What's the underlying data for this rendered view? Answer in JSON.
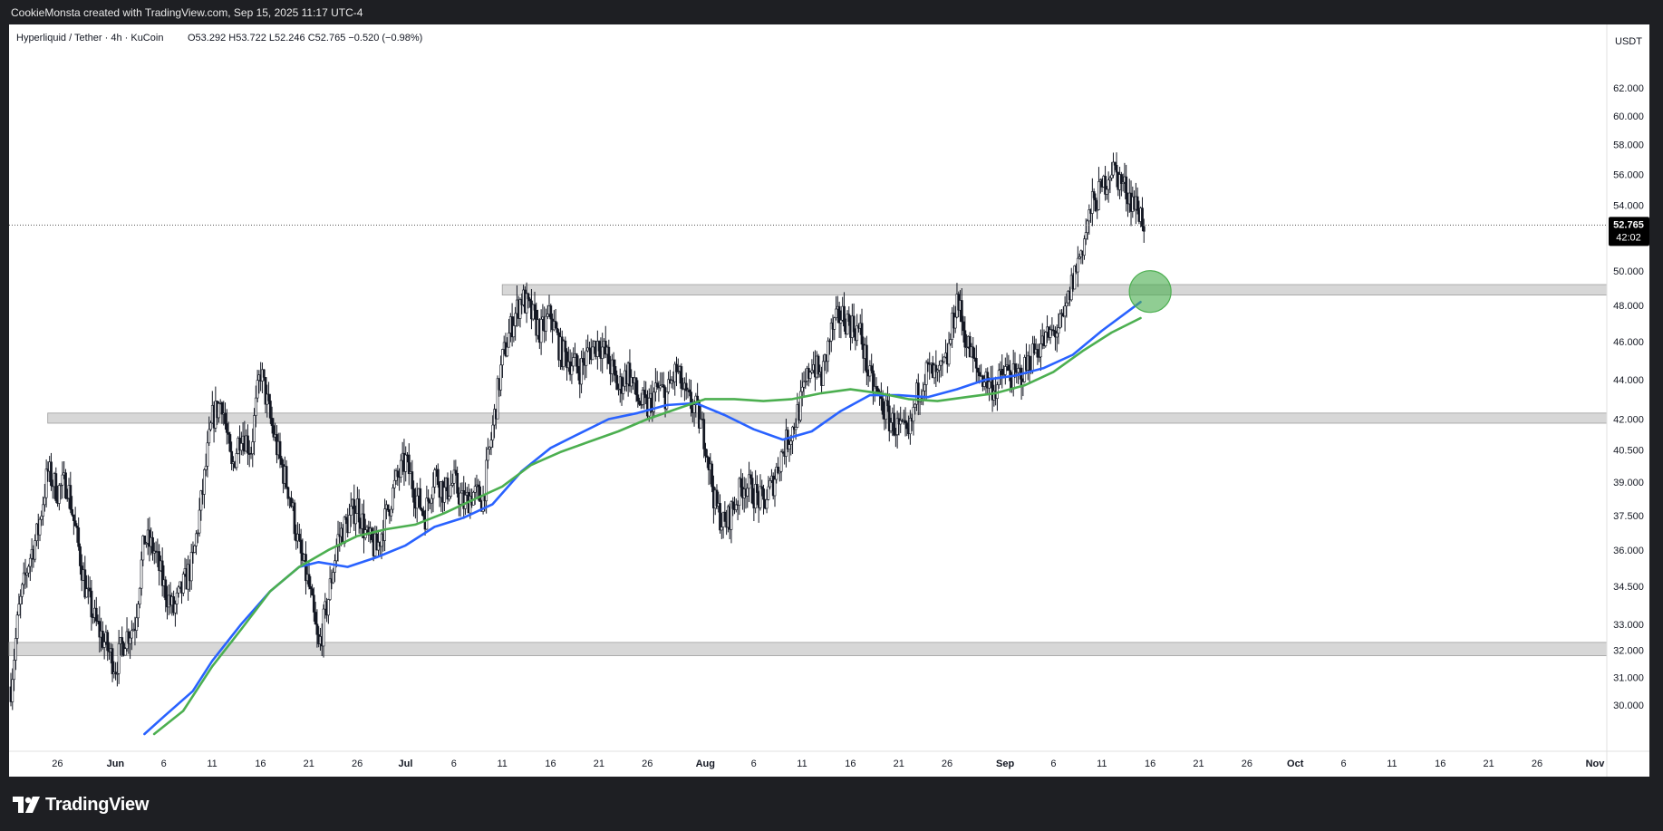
{
  "header": {
    "attribution": "CookieMonsta created with TradingView.com, Sep 15, 2025 11:17 UTC-4"
  },
  "footer": {
    "brand": "TradingView",
    "brand_icon": "tradingview-logo-icon"
  },
  "chart_data": {
    "type": "candlestick",
    "title": "Hyperliquid / Tether · 4h · KuCoin",
    "ohlc_label": "O53.292 H53.722 L52.246 C52.765 −0.520 (−0.98%)",
    "currency": "USDT",
    "y_scale": "log",
    "ylim": [
      29.0,
      64.5
    ],
    "y_ticks": [
      30.0,
      31.0,
      32.0,
      33.0,
      34.5,
      36.0,
      37.5,
      39.0,
      40.5,
      42.0,
      44.0,
      46.0,
      48.0,
      50.0,
      54.0,
      56.0,
      58.0,
      60.0,
      62.0
    ],
    "y_tick_labels": [
      "30.000",
      "31.000",
      "32.000",
      "33.000",
      "34.500",
      "36.000",
      "37.500",
      "39.000",
      "40.500",
      "42.000",
      "44.000",
      "46.000",
      "48.000",
      "50.000",
      "54.000",
      "56.000",
      "58.000",
      "60.000",
      "62.000"
    ],
    "x_range": [
      "2025-05-21",
      "2025-11-01"
    ],
    "x_ticks": [
      {
        "date": "2025-05-26",
        "label": "26"
      },
      {
        "date": "2025-06-01",
        "label": "Jun"
      },
      {
        "date": "2025-06-06",
        "label": "6"
      },
      {
        "date": "2025-06-11",
        "label": "11"
      },
      {
        "date": "2025-06-16",
        "label": "16"
      },
      {
        "date": "2025-06-21",
        "label": "21"
      },
      {
        "date": "2025-06-26",
        "label": "26"
      },
      {
        "date": "2025-07-01",
        "label": "Jul"
      },
      {
        "date": "2025-07-06",
        "label": "6"
      },
      {
        "date": "2025-07-11",
        "label": "11"
      },
      {
        "date": "2025-07-16",
        "label": "16"
      },
      {
        "date": "2025-07-21",
        "label": "21"
      },
      {
        "date": "2025-07-26",
        "label": "26"
      },
      {
        "date": "2025-08-01",
        "label": "Aug"
      },
      {
        "date": "2025-08-06",
        "label": "6"
      },
      {
        "date": "2025-08-11",
        "label": "11"
      },
      {
        "date": "2025-08-16",
        "label": "16"
      },
      {
        "date": "2025-08-21",
        "label": "21"
      },
      {
        "date": "2025-08-26",
        "label": "26"
      },
      {
        "date": "2025-09-01",
        "label": "Sep"
      },
      {
        "date": "2025-09-06",
        "label": "6"
      },
      {
        "date": "2025-09-11",
        "label": "11"
      },
      {
        "date": "2025-09-16",
        "label": "16"
      },
      {
        "date": "2025-09-21",
        "label": "21"
      },
      {
        "date": "2025-09-26",
        "label": "26"
      },
      {
        "date": "2025-10-01",
        "label": "Oct"
      },
      {
        "date": "2025-10-06",
        "label": "6"
      },
      {
        "date": "2025-10-11",
        "label": "11"
      },
      {
        "date": "2025-10-16",
        "label": "16"
      },
      {
        "date": "2025-10-21",
        "label": "21"
      },
      {
        "date": "2025-10-26",
        "label": "26"
      },
      {
        "date": "2025-11-01",
        "label": "Nov"
      }
    ],
    "last_price": {
      "value": 52.765,
      "label": "52.765",
      "countdown": "42:02",
      "color": "#000000"
    },
    "price_path": [
      [
        "2025-05-21",
        30.0
      ],
      [
        "2025-05-22",
        33.5
      ],
      [
        "2025-05-23",
        35.5
      ],
      [
        "2025-05-24",
        36.8
      ],
      [
        "2025-05-25",
        39.5
      ],
      [
        "2025-05-26",
        38.6
      ],
      [
        "2025-05-27",
        39.0
      ],
      [
        "2025-05-28",
        36.5
      ],
      [
        "2025-05-29",
        34.2
      ],
      [
        "2025-05-30",
        33.0
      ],
      [
        "2025-05-31",
        32.2
      ],
      [
        "2025-06-01",
        31.4
      ],
      [
        "2025-06-02",
        32.5
      ],
      [
        "2025-06-03",
        33.0
      ],
      [
        "2025-06-04",
        36.5
      ],
      [
        "2025-06-05",
        36.0
      ],
      [
        "2025-06-06",
        34.5
      ],
      [
        "2025-06-07",
        33.5
      ],
      [
        "2025-06-08",
        34.5
      ],
      [
        "2025-06-09",
        35.5
      ],
      [
        "2025-06-10",
        38.5
      ],
      [
        "2025-06-11",
        42.0
      ],
      [
        "2025-06-12",
        43.0
      ],
      [
        "2025-06-13",
        39.5
      ],
      [
        "2025-06-14",
        41.5
      ],
      [
        "2025-06-15",
        40.5
      ],
      [
        "2025-06-16",
        44.5
      ],
      [
        "2025-06-17",
        42.0
      ],
      [
        "2025-06-18",
        40.0
      ],
      [
        "2025-06-19",
        38.5
      ],
      [
        "2025-06-20",
        36.0
      ],
      [
        "2025-06-21",
        34.5
      ],
      [
        "2025-06-22",
        32.0
      ],
      [
        "2025-06-23",
        34.0
      ],
      [
        "2025-06-24",
        36.5
      ],
      [
        "2025-06-25",
        37.2
      ],
      [
        "2025-06-26",
        38.0
      ],
      [
        "2025-06-27",
        36.5
      ],
      [
        "2025-06-28",
        36.0
      ],
      [
        "2025-06-29",
        37.5
      ],
      [
        "2025-06-30",
        39.0
      ],
      [
        "2025-07-01",
        40.0
      ],
      [
        "2025-07-02",
        38.5
      ],
      [
        "2025-07-03",
        37.5
      ],
      [
        "2025-07-04",
        39.5
      ],
      [
        "2025-07-05",
        38.5
      ],
      [
        "2025-07-06",
        39.0
      ],
      [
        "2025-07-07",
        38.0
      ],
      [
        "2025-07-08",
        38.5
      ],
      [
        "2025-07-09",
        38.2
      ],
      [
        "2025-07-10",
        41.5
      ],
      [
        "2025-07-11",
        45.0
      ],
      [
        "2025-07-12",
        47.0
      ],
      [
        "2025-07-13",
        48.5
      ],
      [
        "2025-07-14",
        47.5
      ],
      [
        "2025-07-15",
        46.5
      ],
      [
        "2025-07-16",
        47.5
      ],
      [
        "2025-07-17",
        45.5
      ],
      [
        "2025-07-18",
        45.0
      ],
      [
        "2025-07-19",
        44.5
      ],
      [
        "2025-07-20",
        45.5
      ],
      [
        "2025-07-21",
        46.0
      ],
      [
        "2025-07-22",
        45.0
      ],
      [
        "2025-07-23",
        43.5
      ],
      [
        "2025-07-24",
        44.5
      ],
      [
        "2025-07-25",
        43.0
      ],
      [
        "2025-07-26",
        42.5
      ],
      [
        "2025-07-27",
        43.5
      ],
      [
        "2025-07-28",
        43.2
      ],
      [
        "2025-07-29",
        44.5
      ],
      [
        "2025-07-30",
        43.0
      ],
      [
        "2025-07-31",
        42.5
      ],
      [
        "2025-08-01",
        41.0
      ],
      [
        "2025-08-02",
        38.0
      ],
      [
        "2025-08-03",
        37.0
      ],
      [
        "2025-08-04",
        38.0
      ],
      [
        "2025-08-05",
        39.0
      ],
      [
        "2025-08-06",
        38.5
      ],
      [
        "2025-08-07",
        38.0
      ],
      [
        "2025-08-08",
        39.0
      ],
      [
        "2025-08-09",
        40.5
      ],
      [
        "2025-08-10",
        41.5
      ],
      [
        "2025-08-11",
        43.0
      ],
      [
        "2025-08-12",
        45.0
      ],
      [
        "2025-08-13",
        44.0
      ],
      [
        "2025-08-14",
        46.5
      ],
      [
        "2025-08-15",
        47.5
      ],
      [
        "2025-08-16",
        47.0
      ],
      [
        "2025-08-17",
        46.5
      ],
      [
        "2025-08-18",
        44.0
      ],
      [
        "2025-08-19",
        43.0
      ],
      [
        "2025-08-20",
        42.0
      ],
      [
        "2025-08-21",
        41.5
      ],
      [
        "2025-08-22",
        41.0
      ],
      [
        "2025-08-23",
        43.5
      ],
      [
        "2025-08-24",
        44.5
      ],
      [
        "2025-08-25",
        44.0
      ],
      [
        "2025-08-26",
        45.0
      ],
      [
        "2025-08-27",
        48.5
      ],
      [
        "2025-08-28",
        46.0
      ],
      [
        "2025-08-29",
        44.5
      ],
      [
        "2025-08-30",
        44.0
      ],
      [
        "2025-08-31",
        43.5
      ],
      [
        "2025-09-01",
        44.5
      ],
      [
        "2025-09-02",
        44.0
      ],
      [
        "2025-09-03",
        44.5
      ],
      [
        "2025-09-04",
        45.5
      ],
      [
        "2025-09-05",
        46.0
      ],
      [
        "2025-09-06",
        46.5
      ],
      [
        "2025-09-07",
        47.0
      ],
      [
        "2025-09-08",
        49.5
      ],
      [
        "2025-09-09",
        51.5
      ],
      [
        "2025-09-10",
        54.0
      ],
      [
        "2025-09-11",
        55.0
      ],
      [
        "2025-09-12",
        56.5
      ],
      [
        "2025-09-13",
        55.5
      ],
      [
        "2025-09-14",
        54.5
      ],
      [
        "2025-09-15",
        53.5
      ],
      [
        "2025-09-15T12:00",
        52.765
      ]
    ],
    "zones": [
      {
        "lo": 48.6,
        "hi": 49.2,
        "from": "2025-07-11",
        "color": "#d3d3d3"
      },
      {
        "lo": 41.8,
        "hi": 42.3,
        "from": "2025-05-25",
        "color": "#d3d3d3"
      },
      {
        "lo": 31.8,
        "hi": 32.3,
        "from": "2025-05-21",
        "color": "#d3d3d3"
      }
    ],
    "marker": {
      "date": "2025-09-16",
      "value": 48.8,
      "color": "#4caf50"
    },
    "series": [
      {
        "color": "#2962ff",
        "points": [
          [
            "2025-06-04",
            29.0
          ],
          [
            "2025-06-06",
            29.6
          ],
          [
            "2025-06-09",
            30.5
          ],
          [
            "2025-06-11",
            31.6
          ],
          [
            "2025-06-14",
            33.0
          ],
          [
            "2025-06-17",
            34.3
          ],
          [
            "2025-06-20",
            35.3
          ],
          [
            "2025-06-22",
            35.5
          ],
          [
            "2025-06-25",
            35.3
          ],
          [
            "2025-06-28",
            35.7
          ],
          [
            "2025-07-01",
            36.2
          ],
          [
            "2025-07-04",
            37.0
          ],
          [
            "2025-07-07",
            37.4
          ],
          [
            "2025-07-10",
            38.0
          ],
          [
            "2025-07-13",
            39.5
          ],
          [
            "2025-07-16",
            40.6
          ],
          [
            "2025-07-19",
            41.3
          ],
          [
            "2025-07-22",
            42.0
          ],
          [
            "2025-07-25",
            42.3
          ],
          [
            "2025-07-28",
            42.7
          ],
          [
            "2025-07-31",
            42.8
          ],
          [
            "2025-08-03",
            42.2
          ],
          [
            "2025-08-06",
            41.5
          ],
          [
            "2025-08-09",
            41.0
          ],
          [
            "2025-08-12",
            41.4
          ],
          [
            "2025-08-15",
            42.4
          ],
          [
            "2025-08-18",
            43.2
          ],
          [
            "2025-08-21",
            43.2
          ],
          [
            "2025-08-24",
            43.1
          ],
          [
            "2025-08-27",
            43.5
          ],
          [
            "2025-08-30",
            44.0
          ],
          [
            "2025-09-02",
            44.2
          ],
          [
            "2025-09-05",
            44.6
          ],
          [
            "2025-09-08",
            45.3
          ],
          [
            "2025-09-11",
            46.6
          ],
          [
            "2025-09-15",
            48.2
          ]
        ]
      },
      {
        "color": "#4caf50",
        "points": [
          [
            "2025-06-05",
            29.0
          ],
          [
            "2025-06-08",
            29.8
          ],
          [
            "2025-06-11",
            31.4
          ],
          [
            "2025-06-14",
            32.8
          ],
          [
            "2025-06-17",
            34.3
          ],
          [
            "2025-06-20",
            35.3
          ],
          [
            "2025-06-23",
            36.0
          ],
          [
            "2025-06-26",
            36.6
          ],
          [
            "2025-06-29",
            36.9
          ],
          [
            "2025-07-02",
            37.1
          ],
          [
            "2025-07-05",
            37.6
          ],
          [
            "2025-07-08",
            38.2
          ],
          [
            "2025-07-11",
            38.8
          ],
          [
            "2025-07-14",
            39.8
          ],
          [
            "2025-07-17",
            40.4
          ],
          [
            "2025-07-20",
            40.9
          ],
          [
            "2025-07-23",
            41.4
          ],
          [
            "2025-07-26",
            42.0
          ],
          [
            "2025-07-29",
            42.5
          ],
          [
            "2025-08-01",
            43.0
          ],
          [
            "2025-08-04",
            43.0
          ],
          [
            "2025-08-07",
            42.9
          ],
          [
            "2025-08-10",
            43.0
          ],
          [
            "2025-08-13",
            43.3
          ],
          [
            "2025-08-16",
            43.5
          ],
          [
            "2025-08-19",
            43.3
          ],
          [
            "2025-08-22",
            43.0
          ],
          [
            "2025-08-25",
            42.9
          ],
          [
            "2025-08-28",
            43.1
          ],
          [
            "2025-08-31",
            43.3
          ],
          [
            "2025-09-03",
            43.7
          ],
          [
            "2025-09-06",
            44.4
          ],
          [
            "2025-09-09",
            45.5
          ],
          [
            "2025-09-12",
            46.5
          ],
          [
            "2025-09-15",
            47.3
          ]
        ]
      }
    ]
  }
}
